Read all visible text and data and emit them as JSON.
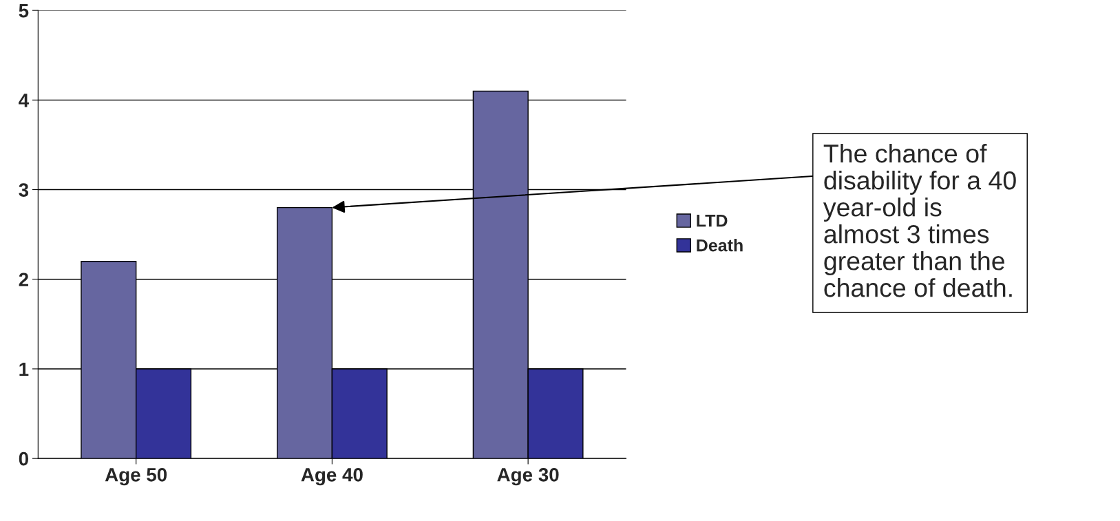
{
  "chart_data": {
    "type": "bar",
    "categories": [
      "Age 50",
      "Age 40",
      "Age 30"
    ],
    "series": [
      {
        "name": "LTD",
        "color": "#6666a0",
        "values": [
          2.2,
          2.8,
          4.1
        ]
      },
      {
        "name": "Death",
        "color": "#333399",
        "values": [
          1,
          1,
          1
        ]
      }
    ],
    "ylim": [
      0,
      5
    ],
    "yticks": [
      0,
      1,
      2,
      3,
      4,
      5
    ],
    "grid": "y",
    "legend": "right",
    "annotations": [
      {
        "text": "The chance of\ndisability for a 40\nyear-old is\nalmost 3 times\ngreater than the\nchance of death.",
        "x": "Age 40",
        "y": 2.8
      }
    ]
  }
}
